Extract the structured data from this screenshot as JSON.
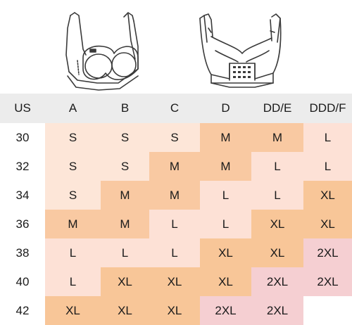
{
  "chart_data": {
    "type": "table",
    "columns": [
      "US",
      "A",
      "B",
      "C",
      "D",
      "DD/E",
      "DDD/F"
    ],
    "rows": [
      {
        "us": "30",
        "sizes": [
          "S",
          "S",
          "S",
          "M",
          "M",
          "L"
        ]
      },
      {
        "us": "32",
        "sizes": [
          "S",
          "S",
          "M",
          "M",
          "L",
          "L"
        ]
      },
      {
        "us": "34",
        "sizes": [
          "S",
          "M",
          "M",
          "L",
          "L",
          "XL"
        ]
      },
      {
        "us": "36",
        "sizes": [
          "M",
          "M",
          "L",
          "L",
          "XL",
          "XL"
        ]
      },
      {
        "us": "38",
        "sizes": [
          "L",
          "L",
          "L",
          "XL",
          "XL",
          "2XL"
        ]
      },
      {
        "us": "40",
        "sizes": [
          "L",
          "XL",
          "XL",
          "XL",
          "2XL",
          "2XL"
        ]
      },
      {
        "us": "42",
        "sizes": [
          "XL",
          "XL",
          "XL",
          "2XL",
          "2XL",
          ""
        ]
      }
    ],
    "size_colors": {
      "S": "#fde6d8",
      "M": "#f9c9a2",
      "L": "#fde1d6",
      "XL": "#f8c698",
      "2XL": "#f5cfd2",
      "empty": "#ffffff"
    }
  },
  "colors": {
    "header_bg": "#ececec",
    "line": "#3a3a3a"
  }
}
